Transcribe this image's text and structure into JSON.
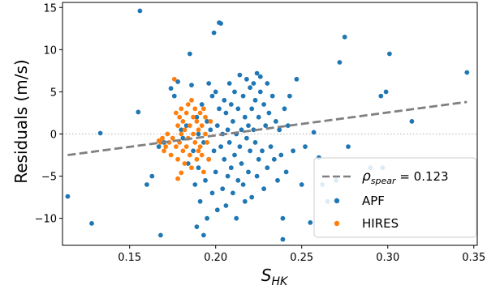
{
  "chart_data": {
    "type": "scatter",
    "title": "",
    "xlabel": "S",
    "xlabel_sub": "HK",
    "ylabel": "Residuals (m/s)",
    "xlim": [
      0.111,
      0.352
    ],
    "ylim": [
      -13.2,
      15.6
    ],
    "xticks": [
      0.15,
      0.2,
      0.25,
      0.3,
      0.35
    ],
    "xtick_labels": [
      "0.15",
      "0.20",
      "0.25",
      "0.30",
      "0.35"
    ],
    "yticks": [
      15,
      10,
      5,
      0,
      -5,
      -10
    ],
    "ytick_labels": [
      "15",
      "10",
      "5",
      "0",
      "−5",
      "−10"
    ],
    "grid": false,
    "reference_line_y": 0,
    "legend_position": "lower-right",
    "trend_line": {
      "label_symbol": "ρ",
      "label_sub": "spear",
      "label_value": " = 0.123",
      "x": [
        0.114,
        0.346
      ],
      "y": [
        -2.5,
        3.8
      ],
      "color": "#808080"
    },
    "series": [
      {
        "name": "APF",
        "color": "#1f77b4",
        "points": [
          [
            0.114,
            -7.4
          ],
          [
            0.128,
            -10.6
          ],
          [
            0.133,
            0.1
          ],
          [
            0.155,
            2.6
          ],
          [
            0.156,
            14.6
          ],
          [
            0.16,
            -6.0
          ],
          [
            0.163,
            -5.0
          ],
          [
            0.167,
            -1.5
          ],
          [
            0.168,
            -12.0
          ],
          [
            0.17,
            -1.0
          ],
          [
            0.174,
            5.4
          ],
          [
            0.176,
            4.5
          ],
          [
            0.178,
            6.2
          ],
          [
            0.18,
            0.5
          ],
          [
            0.181,
            -0.5
          ],
          [
            0.183,
            1.0
          ],
          [
            0.184,
            -3.5
          ],
          [
            0.185,
            9.5
          ],
          [
            0.186,
            5.8
          ],
          [
            0.187,
            -2.0
          ],
          [
            0.188,
            -6.0
          ],
          [
            0.189,
            -11.0
          ],
          [
            0.189,
            2.0
          ],
          [
            0.19,
            -4.0
          ],
          [
            0.19,
            0.0
          ],
          [
            0.191,
            -8.0
          ],
          [
            0.192,
            3.5
          ],
          [
            0.193,
            -1.0
          ],
          [
            0.193,
            -12.0
          ],
          [
            0.194,
            -5.5
          ],
          [
            0.195,
            1.5
          ],
          [
            0.195,
            -10.0
          ],
          [
            0.196,
            6.0
          ],
          [
            0.196,
            -3.0
          ],
          [
            0.197,
            0.5
          ],
          [
            0.198,
            4.5
          ],
          [
            0.198,
            -7.0
          ],
          [
            0.199,
            -2.0
          ],
          [
            0.199,
            12.0
          ],
          [
            0.2,
            5.0
          ],
          [
            0.2,
            -4.5
          ],
          [
            0.201,
            1.0
          ],
          [
            0.201,
            -9.0
          ],
          [
            0.202,
            13.2
          ],
          [
            0.202,
            3.0
          ],
          [
            0.203,
            13.1
          ],
          [
            0.203,
            -1.5
          ],
          [
            0.204,
            -6.5
          ],
          [
            0.204,
            0.0
          ],
          [
            0.205,
            4.0
          ],
          [
            0.205,
            -3.0
          ],
          [
            0.206,
            2.5
          ],
          [
            0.206,
            -8.5
          ],
          [
            0.207,
            -5.0
          ],
          [
            0.207,
            0.5
          ],
          [
            0.208,
            6.0
          ],
          [
            0.208,
            -1.0
          ],
          [
            0.209,
            -4.0
          ],
          [
            0.209,
            3.5
          ],
          [
            0.21,
            -7.0
          ],
          [
            0.21,
            1.5
          ],
          [
            0.211,
            -2.5
          ],
          [
            0.211,
            5.0
          ],
          [
            0.212,
            0.0
          ],
          [
            0.212,
            -10.0
          ],
          [
            0.213,
            3.0
          ],
          [
            0.213,
            -5.5
          ],
          [
            0.214,
            7.0
          ],
          [
            0.214,
            -1.5
          ],
          [
            0.215,
            0.5
          ],
          [
            0.215,
            -3.5
          ],
          [
            0.216,
            4.5
          ],
          [
            0.216,
            -6.0
          ],
          [
            0.217,
            2.0
          ],
          [
            0.217,
            -8.0
          ],
          [
            0.218,
            6.5
          ],
          [
            0.218,
            -0.5
          ],
          [
            0.219,
            1.0
          ],
          [
            0.219,
            -4.5
          ],
          [
            0.22,
            5.5
          ],
          [
            0.22,
            -2.0
          ],
          [
            0.221,
            3.0
          ],
          [
            0.221,
            -7.5
          ],
          [
            0.222,
            0.5
          ],
          [
            0.222,
            6.0
          ],
          [
            0.223,
            -1.0
          ],
          [
            0.223,
            4.0
          ],
          [
            0.224,
            -5.0
          ],
          [
            0.224,
            7.2
          ],
          [
            0.225,
            2.0
          ],
          [
            0.225,
            -3.0
          ],
          [
            0.226,
            5.0
          ],
          [
            0.226,
            6.8
          ],
          [
            0.227,
            -2.0
          ],
          [
            0.228,
            3.5
          ],
          [
            0.228,
            -6.5
          ],
          [
            0.229,
            1.0
          ],
          [
            0.23,
            6.0
          ],
          [
            0.23,
            -4.0
          ],
          [
            0.231,
            2.5
          ],
          [
            0.232,
            -1.5
          ],
          [
            0.233,
            4.5
          ],
          [
            0.234,
            -3.0
          ],
          [
            0.235,
            1.5
          ],
          [
            0.236,
            -5.5
          ],
          [
            0.237,
            0.5
          ],
          [
            0.238,
            -2.5
          ],
          [
            0.239,
            -12.5
          ],
          [
            0.239,
            -10.0
          ],
          [
            0.24,
            3.0
          ],
          [
            0.241,
            -4.5
          ],
          [
            0.242,
            1.0
          ],
          [
            0.243,
            4.5
          ],
          [
            0.245,
            -2.0
          ],
          [
            0.247,
            6.5
          ],
          [
            0.25,
            -6.0
          ],
          [
            0.252,
            -1.5
          ],
          [
            0.255,
            -10.5
          ],
          [
            0.257,
            0.2
          ],
          [
            0.26,
            -2.8
          ],
          [
            0.262,
            -6.0
          ],
          [
            0.265,
            -8.0
          ],
          [
            0.27,
            -5.5
          ],
          [
            0.272,
            8.5
          ],
          [
            0.275,
            11.5
          ],
          [
            0.277,
            -1.5
          ],
          [
            0.29,
            -4.0
          ],
          [
            0.296,
            4.5
          ],
          [
            0.297,
            -4.0
          ],
          [
            0.299,
            5.0
          ],
          [
            0.301,
            9.5
          ],
          [
            0.314,
            1.5
          ],
          [
            0.346,
            7.3
          ]
        ]
      },
      {
        "name": "HIRES",
        "color": "#ff7f0e",
        "points": [
          [
            0.167,
            -0.8
          ],
          [
            0.168,
            -1.0
          ],
          [
            0.169,
            -0.5
          ],
          [
            0.17,
            -2.0
          ],
          [
            0.171,
            -1.5
          ],
          [
            0.172,
            0.0
          ],
          [
            0.173,
            -1.0
          ],
          [
            0.174,
            -2.5
          ],
          [
            0.175,
            -0.5
          ],
          [
            0.176,
            6.5
          ],
          [
            0.177,
            2.5
          ],
          [
            0.177,
            -1.5
          ],
          [
            0.178,
            1.0
          ],
          [
            0.178,
            -3.0
          ],
          [
            0.179,
            2.0
          ],
          [
            0.179,
            -1.0
          ],
          [
            0.18,
            3.0
          ],
          [
            0.18,
            0.0
          ],
          [
            0.181,
            -2.0
          ],
          [
            0.181,
            1.5
          ],
          [
            0.182,
            -3.5
          ],
          [
            0.182,
            0.5
          ],
          [
            0.183,
            2.5
          ],
          [
            0.183,
            -1.5
          ],
          [
            0.184,
            3.5
          ],
          [
            0.184,
            -0.5
          ],
          [
            0.185,
            1.0
          ],
          [
            0.185,
            -2.5
          ],
          [
            0.186,
            4.0
          ],
          [
            0.186,
            -4.0
          ],
          [
            0.187,
            0.0
          ],
          [
            0.187,
            2.0
          ],
          [
            0.188,
            -1.0
          ],
          [
            0.188,
            3.0
          ],
          [
            0.189,
            -3.0
          ],
          [
            0.189,
            1.5
          ],
          [
            0.19,
            -2.0
          ],
          [
            0.19,
            0.5
          ],
          [
            0.191,
            2.5
          ],
          [
            0.191,
            -1.5
          ],
          [
            0.192,
            -2.5
          ],
          [
            0.192,
            1.0
          ],
          [
            0.193,
            3.0
          ],
          [
            0.193,
            -4.5
          ],
          [
            0.194,
            0.0
          ],
          [
            0.194,
            2.0
          ],
          [
            0.195,
            -1.0
          ],
          [
            0.196,
            -3.0
          ],
          [
            0.197,
            1.5
          ],
          [
            0.178,
            -5.3
          ],
          [
            0.18,
            -4.6
          ]
        ]
      }
    ]
  }
}
